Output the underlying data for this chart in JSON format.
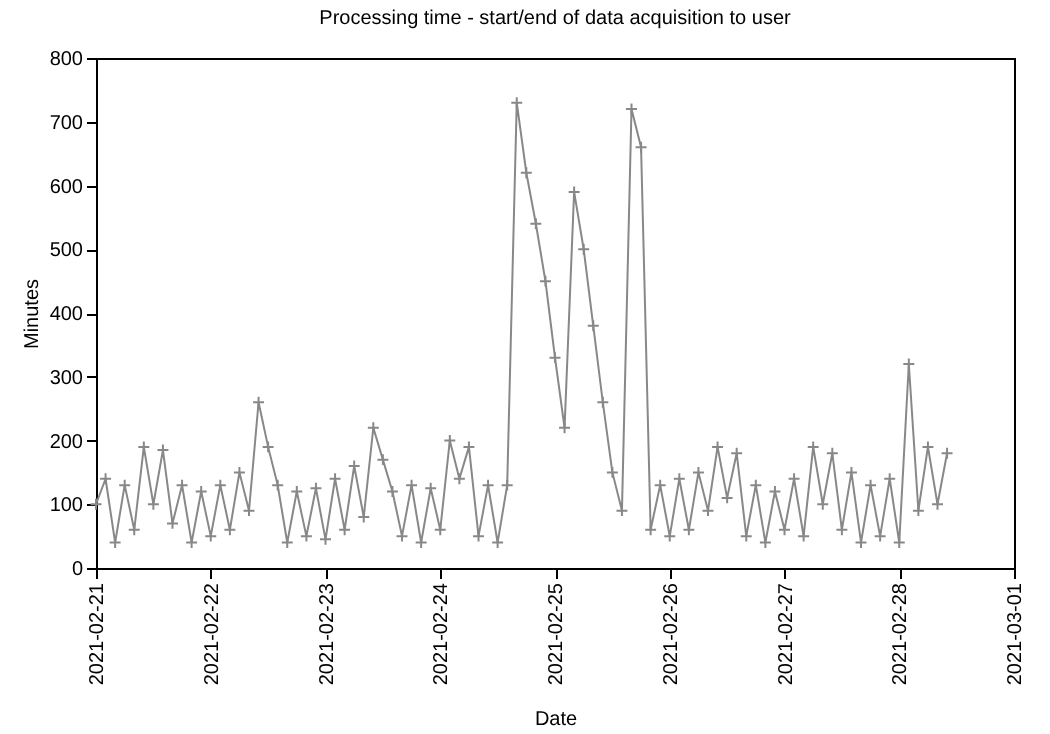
{
  "chart_data": {
    "type": "line",
    "title": "Processing time - start/end of data acquisition to user",
    "xlabel": "Date",
    "ylabel": "Minutes",
    "x": [
      "2021-02-21T00:00",
      "2021-02-21T02:00",
      "2021-02-21T04:00",
      "2021-02-21T06:00",
      "2021-02-21T08:00",
      "2021-02-21T10:00",
      "2021-02-21T12:00",
      "2021-02-21T14:00",
      "2021-02-21T16:00",
      "2021-02-21T18:00",
      "2021-02-21T20:00",
      "2021-02-21T22:00",
      "2021-02-22T00:00",
      "2021-02-22T02:00",
      "2021-02-22T04:00",
      "2021-02-22T06:00",
      "2021-02-22T08:00",
      "2021-02-22T10:00",
      "2021-02-22T12:00",
      "2021-02-22T14:00",
      "2021-02-22T16:00",
      "2021-02-22T18:00",
      "2021-02-22T20:00",
      "2021-02-22T22:00",
      "2021-02-23T00:00",
      "2021-02-23T02:00",
      "2021-02-23T04:00",
      "2021-02-23T06:00",
      "2021-02-23T08:00",
      "2021-02-23T10:00",
      "2021-02-23T12:00",
      "2021-02-23T14:00",
      "2021-02-23T16:00",
      "2021-02-23T18:00",
      "2021-02-23T20:00",
      "2021-02-23T22:00",
      "2021-02-24T00:00",
      "2021-02-24T02:00",
      "2021-02-24T04:00",
      "2021-02-24T06:00",
      "2021-02-24T08:00",
      "2021-02-24T10:00",
      "2021-02-24T12:00",
      "2021-02-24T14:00",
      "2021-02-24T16:00",
      "2021-02-24T18:00",
      "2021-02-24T20:00",
      "2021-02-24T22:00",
      "2021-02-25T00:00",
      "2021-02-25T02:00",
      "2021-02-25T04:00",
      "2021-02-25T06:00",
      "2021-02-25T08:00",
      "2021-02-25T10:00",
      "2021-02-25T12:00",
      "2021-02-25T14:00",
      "2021-02-25T16:00",
      "2021-02-25T18:00",
      "2021-02-25T20:00",
      "2021-02-25T22:00",
      "2021-02-26T00:00",
      "2021-02-26T02:00",
      "2021-02-26T04:00",
      "2021-02-26T06:00",
      "2021-02-26T08:00",
      "2021-02-26T10:00",
      "2021-02-26T12:00",
      "2021-02-26T14:00",
      "2021-02-26T16:00",
      "2021-02-26T18:00",
      "2021-02-26T20:00",
      "2021-02-26T22:00",
      "2021-02-27T00:00",
      "2021-02-27T02:00",
      "2021-02-27T04:00",
      "2021-02-27T06:00",
      "2021-02-27T08:00",
      "2021-02-27T10:00",
      "2021-02-27T12:00",
      "2021-02-27T14:00",
      "2021-02-27T16:00",
      "2021-02-27T18:00",
      "2021-02-27T20:00",
      "2021-02-27T22:00",
      "2021-02-28T00:00",
      "2021-02-28T02:00",
      "2021-02-28T04:00",
      "2021-02-28T06:00",
      "2021-02-28T08:00",
      "2021-02-28T10:00"
    ],
    "values": [
      100,
      140,
      40,
      130,
      60,
      190,
      100,
      185,
      70,
      130,
      40,
      120,
      50,
      130,
      60,
      150,
      90,
      260,
      190,
      130,
      40,
      120,
      50,
      125,
      45,
      140,
      60,
      160,
      80,
      220,
      170,
      120,
      50,
      130,
      40,
      125,
      60,
      200,
      140,
      190,
      50,
      130,
      40,
      130,
      730,
      620,
      540,
      450,
      330,
      220,
      590,
      500,
      380,
      260,
      150,
      90,
      720,
      660,
      60,
      130,
      50,
      140,
      60,
      150,
      90,
      190,
      110,
      180,
      50,
      130,
      40,
      120,
      60,
      140,
      50,
      190,
      100,
      180,
      60,
      150,
      40,
      130,
      50,
      140,
      40,
      320,
      90,
      190,
      100,
      180
    ],
    "color": "#888888",
    "marker": "cross",
    "xlim": [
      "2021-02-21",
      "2021-03-01"
    ],
    "xticks": [
      "2021-02-21",
      "2021-02-22",
      "2021-02-23",
      "2021-02-24",
      "2021-02-25",
      "2021-02-26",
      "2021-02-27",
      "2021-02-28",
      "2021-03-01"
    ],
    "ylim": [
      0,
      800
    ],
    "yticks": [
      0,
      100,
      200,
      300,
      400,
      500,
      600,
      700,
      800
    ]
  }
}
